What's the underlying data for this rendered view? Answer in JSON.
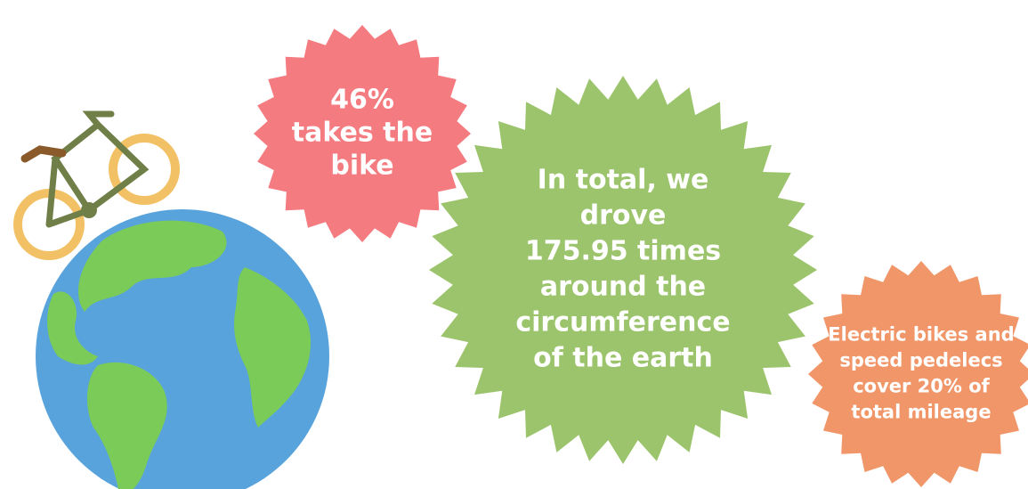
{
  "badges": [
    {
      "lines": [
        "46%",
        "takes the",
        "bike"
      ]
    },
    {
      "lines": [
        "In total, we",
        "drove",
        "175.95 times",
        "around the",
        "circumference",
        "of the earth"
      ]
    },
    {
      "lines": [
        "Electric bikes and",
        "speed pedelecs",
        "cover 20% of",
        "total mileage"
      ]
    }
  ]
}
